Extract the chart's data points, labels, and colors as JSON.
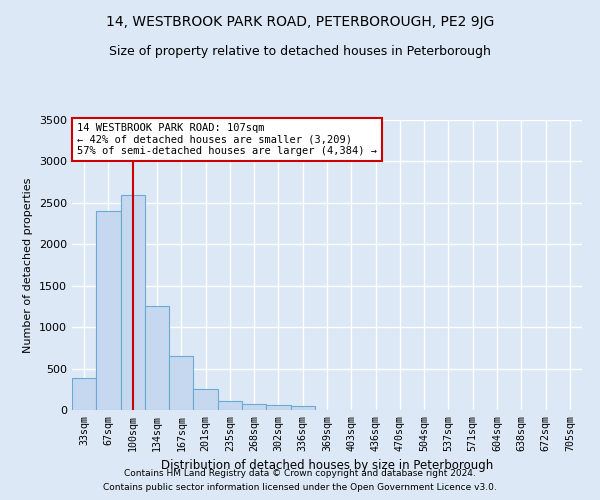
{
  "title": "14, WESTBROOK PARK ROAD, PETERBOROUGH, PE2 9JG",
  "subtitle": "Size of property relative to detached houses in Peterborough",
  "xlabel": "Distribution of detached houses by size in Peterborough",
  "ylabel": "Number of detached properties",
  "footnote1": "Contains HM Land Registry data © Crown copyright and database right 2024.",
  "footnote2": "Contains public sector information licensed under the Open Government Licence v3.0.",
  "bar_labels": [
    "33sqm",
    "67sqm",
    "100sqm",
    "134sqm",
    "167sqm",
    "201sqm",
    "235sqm",
    "268sqm",
    "302sqm",
    "336sqm",
    "369sqm",
    "403sqm",
    "436sqm",
    "470sqm",
    "504sqm",
    "537sqm",
    "571sqm",
    "604sqm",
    "638sqm",
    "672sqm",
    "705sqm"
  ],
  "bar_values": [
    390,
    2400,
    2600,
    1250,
    650,
    250,
    110,
    70,
    60,
    50,
    0,
    0,
    0,
    0,
    0,
    0,
    0,
    0,
    0,
    0,
    0
  ],
  "bar_color": "#c5d8f0",
  "bar_edgecolor": "#6aaad4",
  "ylim": [
    0,
    3500
  ],
  "yticks": [
    0,
    500,
    1000,
    1500,
    2000,
    2500,
    3000,
    3500
  ],
  "property_label": "14 WESTBROOK PARK ROAD: 107sqm",
  "annotation_line1": "← 42% of detached houses are smaller (3,209)",
  "annotation_line2": "57% of semi-detached houses are larger (4,384) →",
  "vline_color": "#cc0000",
  "vline_x_bar_index": 2.0,
  "background_color": "#dce8f5",
  "grid_color": "#ffffff",
  "title_fontsize": 10,
  "subtitle_fontsize": 9
}
